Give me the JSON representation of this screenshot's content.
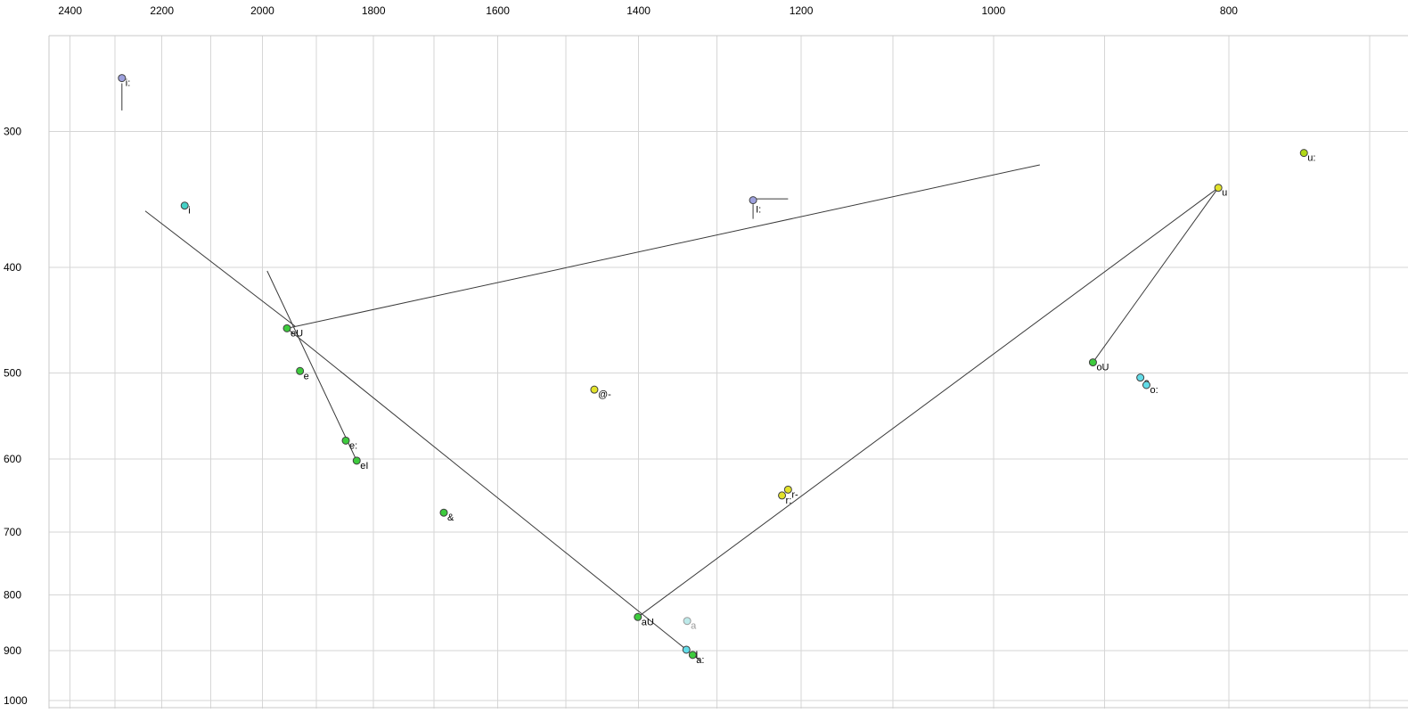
{
  "style": {
    "background": "#ffffff",
    "grid_color": "#d6d6d6",
    "border_color": "#c9c9c9",
    "line_color": "#3a3a3a",
    "point_stroke": "#404040",
    "text_color": "#000000"
  },
  "chart_data": {
    "type": "scatter",
    "x_axis": {
      "position": "top",
      "scale": "log",
      "direction": "decreasing-right",
      "range_at_plot_edges": [
        2565,
        675
      ],
      "tick_values": [
        2400,
        2200,
        2000,
        1800,
        1600,
        1400,
        1200,
        1000,
        800
      ],
      "tick_labels": [
        "2400",
        "2200",
        "2000",
        "1800",
        "1600",
        "1400",
        "1200",
        "1000",
        "800"
      ],
      "grid_values": [
        2500,
        2400,
        2300,
        2200,
        2100,
        2000,
        1900,
        1800,
        1700,
        1600,
        1500,
        1400,
        1300,
        1200,
        1100,
        1000,
        900,
        800,
        700
      ]
    },
    "y_axis": {
      "position": "left",
      "scale": "log",
      "direction": "increasing-down",
      "range_at_plot_edges": [
        245,
        1017
      ],
      "tick_values": [
        300,
        400,
        500,
        600,
        700,
        800,
        900,
        1000
      ],
      "tick_labels": [
        "300",
        "400",
        "500",
        "600",
        "700",
        "800",
        "900",
        "1000"
      ],
      "grid_values": [
        300,
        400,
        500,
        600,
        700,
        800,
        900,
        1000
      ]
    },
    "points": [
      {
        "label": "i:",
        "f2": 2285,
        "f1": 268,
        "fill": "#9da0dd"
      },
      {
        "label": "i",
        "f2": 2153,
        "f1": 351,
        "fill": "#45d1c6"
      },
      {
        "label": "I:",
        "f2": 1256,
        "f1": 347,
        "fill": "#9da0dd",
        "label_dx": 3,
        "label_dy": 14
      },
      {
        "label": "u",
        "f2": 808,
        "f1": 338,
        "fill": "#e2e22a"
      },
      {
        "label": "u:",
        "f2": 745,
        "f1": 314,
        "fill": "#b0d816"
      },
      {
        "label": "eU",
        "f2": 1954,
        "f1": 455,
        "fill": "#3dcb3d"
      },
      {
        "label": "e",
        "f2": 1930,
        "f1": 498,
        "fill": "#3dcb3d"
      },
      {
        "label": "@-",
        "f2": 1460,
        "f1": 518,
        "fill": "#e2e22a"
      },
      {
        "label": "e:",
        "f2": 1848,
        "f1": 577,
        "fill": "#3dcb3d"
      },
      {
        "label": "eI",
        "f2": 1829,
        "f1": 602,
        "fill": "#3dcb3d"
      },
      {
        "label": "&",
        "f2": 1684,
        "f1": 672,
        "fill": "#3dcb3d"
      },
      {
        "label": "r-",
        "f2": 1215,
        "f1": 640,
        "fill": "#e2e22a"
      },
      {
        "label": "r:",
        "f2": 1222,
        "f1": 648,
        "fill": "#e2e22a"
      },
      {
        "label": "oU",
        "f2": 910,
        "f1": 489,
        "fill": "#3dcb3d"
      },
      {
        "label": "o",
        "f2": 870,
        "f1": 505,
        "fill": "#62dce8"
      },
      {
        "label": "o:",
        "f2": 865,
        "f1": 513,
        "fill": "#62dce8"
      },
      {
        "label": "aU",
        "f2": 1401,
        "f1": 838,
        "fill": "#3dcb3d"
      },
      {
        "label": "a",
        "f2": 1337,
        "f1": 845,
        "fill": "#bdeaea",
        "stroke": "#9a9a9a",
        "label_color": "#9a9a9a"
      },
      {
        "label": "aI",
        "f2": 1338,
        "f1": 898,
        "fill": "#62dce8"
      },
      {
        "label": "a:",
        "f2": 1330,
        "f1": 908,
        "fill": "#3dcb3d"
      }
    ],
    "trajectories": [
      {
        "from": [
          2235,
          355
        ],
        "to": [
          1939,
          453
        ]
      },
      {
        "from": [
          1954,
          455
        ],
        "to": [
          1320,
          920
        ]
      },
      {
        "from": [
          1401,
          838
        ],
        "to": [
          808,
          338
        ]
      },
      {
        "from": [
          808,
          338
        ],
        "to": [
          910,
          489
        ]
      },
      {
        "from": [
          1954,
          455
        ],
        "to": [
          957,
          322
        ]
      },
      {
        "from": [
          1991,
          403
        ],
        "to": [
          1829,
          602
        ]
      },
      {
        "from": [
          1256,
          346
        ],
        "to": [
          1215,
          346
        ]
      },
      {
        "from": [
          1256,
          350
        ],
        "to": [
          1256,
          361
        ]
      },
      {
        "from": [
          2285,
          271
        ],
        "to": [
          2285,
          287
        ]
      }
    ]
  }
}
